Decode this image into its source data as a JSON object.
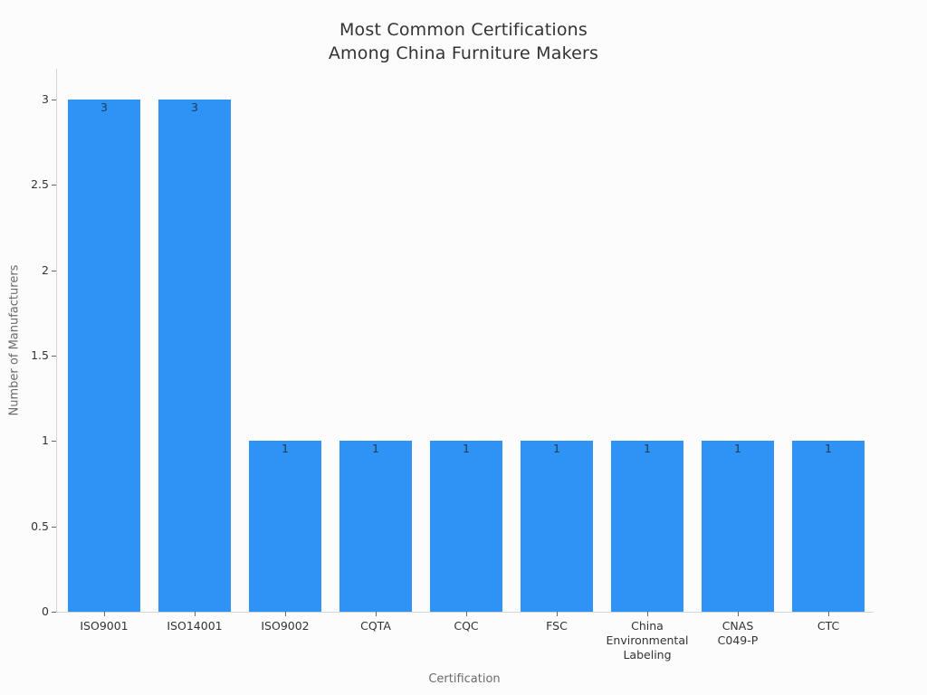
{
  "title": {
    "line1": "Most Common Certifications",
    "line2": "Among China Furniture Makers"
  },
  "chart_data": {
    "type": "bar",
    "title": "Most Common Certifications Among China Furniture Makers",
    "categories": [
      "ISO9001",
      "ISO14001",
      "ISO9002",
      "CQTA",
      "CQC",
      "FSC",
      "China\nEnvironmental\nLabeling",
      "CNAS\nC049-P",
      "CTC"
    ],
    "values": [
      3,
      3,
      1,
      1,
      1,
      1,
      1,
      1,
      1
    ],
    "bar_labels": [
      "3",
      "3",
      "1",
      "1",
      "1",
      "1",
      "1",
      "1",
      "1"
    ],
    "xlabel": "Certification",
    "ylabel": "Number of Manufacturers",
    "ytick_values": [
      0,
      0.5,
      1,
      1.5,
      2,
      2.5,
      3
    ],
    "ytick_labels": [
      "0",
      "0.5",
      "1",
      "1.5",
      "2",
      "2.5",
      "3"
    ],
    "ylim": [
      0,
      3.18
    ],
    "grid": false,
    "legend": "none"
  },
  "colors": {
    "bar_fill": "#2e93f5",
    "bar_value_label": "#1f3a54",
    "axis_line": "#d4d4d4",
    "tick_mark": "#666666",
    "tick_label": "#333333",
    "axis_title": "#6b6b6b",
    "title": "#333333",
    "background": "#fcfcfc"
  }
}
